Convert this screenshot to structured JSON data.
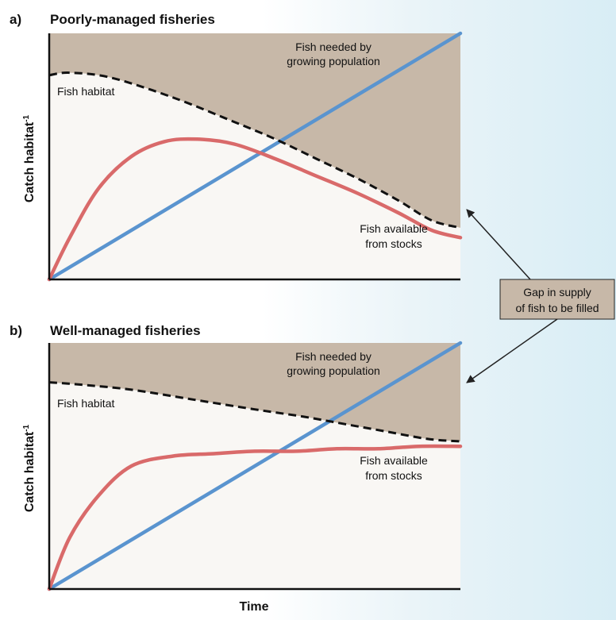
{
  "chart_data": [
    {
      "panel_letter": "a)",
      "title": "Poorly-managed fisheries",
      "type": "line",
      "ylabel": "Catch habitat",
      "ylabel_superscript": "-1",
      "xlim": [
        0,
        1
      ],
      "ylim": [
        0,
        1
      ],
      "series": [
        {
          "key": "habitat",
          "label": "Fish habitat",
          "style": "dashed",
          "color": "#111111",
          "x": [
            0,
            0.05,
            0.15,
            0.3,
            0.45,
            0.55,
            0.65,
            0.75,
            0.85,
            0.93,
            1.0
          ],
          "y": [
            0.83,
            0.84,
            0.82,
            0.74,
            0.64,
            0.57,
            0.49,
            0.41,
            0.32,
            0.24,
            0.21
          ]
        },
        {
          "key": "needed",
          "label": "Fish needed by growing population",
          "color": "#5a94cf",
          "x": [
            0,
            1
          ],
          "y": [
            0,
            1
          ]
        },
        {
          "key": "available",
          "label": "Fish available from stocks",
          "color": "#d96a6a",
          "x": [
            0,
            0.05,
            0.12,
            0.2,
            0.28,
            0.36,
            0.45,
            0.55,
            0.65,
            0.75,
            0.85,
            0.93,
            1.0
          ],
          "y": [
            0,
            0.17,
            0.37,
            0.5,
            0.56,
            0.57,
            0.55,
            0.49,
            0.42,
            0.35,
            0.27,
            0.2,
            0.17
          ]
        }
      ],
      "labels": {
        "needed": [
          "Fish needed by",
          "growing population"
        ],
        "habitat": [
          "Fish habitat"
        ],
        "available": [
          "Fish available",
          "from stocks"
        ]
      },
      "colors": {
        "gap_fill": "#c7b8a8",
        "plot_bg": "#f9f7f4"
      }
    },
    {
      "panel_letter": "b)",
      "title": "Well-managed fisheries",
      "type": "line",
      "ylabel": "Catch habitat",
      "ylabel_superscript": "-1",
      "xlabel": "Time",
      "xlim": [
        0,
        1
      ],
      "ylim": [
        0,
        1
      ],
      "series": [
        {
          "key": "habitat",
          "label": "Fish habitat",
          "style": "dashed",
          "color": "#111111",
          "x": [
            0,
            0.08,
            0.2,
            0.35,
            0.5,
            0.62,
            0.72,
            0.82,
            0.92,
            1.0
          ],
          "y": [
            0.84,
            0.83,
            0.81,
            0.77,
            0.73,
            0.7,
            0.67,
            0.64,
            0.61,
            0.6
          ]
        },
        {
          "key": "needed",
          "label": "Fish needed by growing population",
          "color": "#5a94cf",
          "x": [
            0,
            1
          ],
          "y": [
            0,
            1
          ]
        },
        {
          "key": "available",
          "label": "Fish available from stocks",
          "color": "#d96a6a",
          "x": [
            0,
            0.05,
            0.12,
            0.2,
            0.3,
            0.4,
            0.5,
            0.6,
            0.7,
            0.8,
            0.9,
            1.0
          ],
          "y": [
            0,
            0.21,
            0.38,
            0.5,
            0.54,
            0.55,
            0.56,
            0.56,
            0.57,
            0.57,
            0.58,
            0.58
          ]
        }
      ],
      "labels": {
        "needed": [
          "Fish needed by",
          "growing population"
        ],
        "habitat": [
          "Fish habitat"
        ],
        "available": [
          "Fish available",
          "from stocks"
        ]
      },
      "colors": {
        "gap_fill": "#c7b8a8",
        "plot_bg": "#f9f7f4"
      }
    }
  ],
  "callout": {
    "lines": [
      "Gap in supply",
      "of fish to be filled"
    ],
    "fill": "#c7b8a8"
  }
}
